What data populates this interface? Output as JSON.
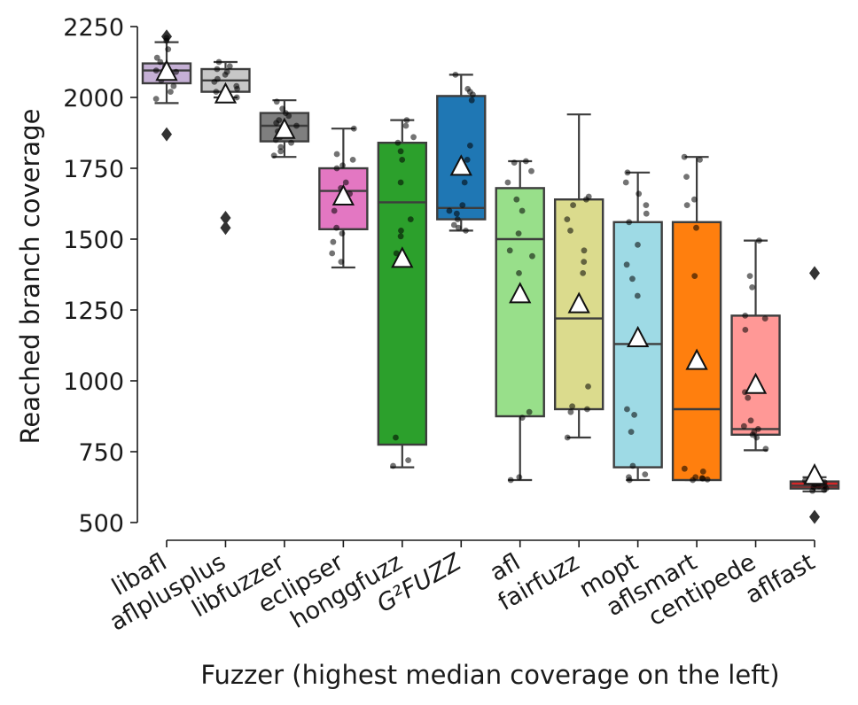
{
  "chart_data": {
    "type": "box",
    "title": "",
    "xlabel": "Fuzzer (highest median coverage on the left)",
    "ylabel": "Reached branch coverage",
    "ylim": [
      500,
      2250
    ],
    "yticks": [
      500,
      750,
      1000,
      1250,
      1500,
      1750,
      2000,
      2250
    ],
    "grid": false,
    "legend": "none",
    "boxes": [
      {
        "label": "libafl",
        "italic": false,
        "color": "#c5b0d5",
        "q1": 2050,
        "median": 2095,
        "q3": 2120,
        "whisker_low": 1980,
        "whisker_high": 2195,
        "mean": 2090,
        "outliers": [
          1870,
          2215
        ],
        "points": [
          2200,
          2170,
          2140,
          2125,
          2110,
          2100,
          2095,
          2090,
          2080,
          2070,
          2060,
          2040,
          2020,
          1995,
          2210
        ]
      },
      {
        "label": "aflplusplus",
        "italic": false,
        "color": "#c7c7c7",
        "q1": 2020,
        "median": 2060,
        "q3": 2100,
        "whisker_low": 2000,
        "whisker_high": 2125,
        "mean": 2010,
        "outliers": [
          1540,
          1575
        ],
        "points": [
          2125,
          2110,
          2100,
          2090,
          2080,
          2065,
          2055,
          2040,
          2030,
          2020,
          2010,
          2000
        ]
      },
      {
        "label": "libfuzzer",
        "italic": false,
        "color": "#7f7f7f",
        "q1": 1845,
        "median": 1900,
        "q3": 1945,
        "whisker_low": 1790,
        "whisker_high": 1990,
        "mean": 1885,
        "outliers": [],
        "points": [
          1985,
          1960,
          1945,
          1935,
          1920,
          1910,
          1900,
          1890,
          1880,
          1870,
          1860,
          1850,
          1840,
          1825,
          1810,
          1795
        ]
      },
      {
        "label": "eclipser",
        "italic": false,
        "color": "#e377c2",
        "q1": 1535,
        "median": 1670,
        "q3": 1750,
        "whisker_low": 1400,
        "whisker_high": 1890,
        "mean": 1650,
        "outliers": [],
        "points": [
          1890,
          1800,
          1780,
          1760,
          1750,
          1700,
          1680,
          1660,
          1640,
          1600,
          1540,
          1520,
          1490,
          1450,
          1420
        ]
      },
      {
        "label": "honggfuzz",
        "italic": false,
        "color": "#2ca02c",
        "q1": 775,
        "median": 1630,
        "q3": 1840,
        "whisker_low": 695,
        "whisker_high": 1920,
        "mean": 1430,
        "outliers": [],
        "points": [
          1920,
          1900,
          1860,
          1840,
          1810,
          1780,
          1700,
          1570,
          1530,
          1510,
          1450,
          800,
          720,
          700
        ]
      },
      {
        "label": "G²FUZZ",
        "italic": true,
        "color": "#1f77b4",
        "q1": 1570,
        "median": 1610,
        "q3": 2005,
        "whisker_low": 1530,
        "whisker_high": 2080,
        "mean": 1755,
        "outliers": [],
        "points": [
          2080,
          2030,
          2020,
          2010,
          1990,
          1830,
          1780,
          1700,
          1620,
          1600,
          1590,
          1570,
          1550,
          1540,
          1530
        ]
      },
      {
        "label": "afl",
        "italic": false,
        "color": "#98df8a",
        "q1": 875,
        "median": 1500,
        "q3": 1680,
        "whisker_low": 650,
        "whisker_high": 1775,
        "mean": 1305,
        "outliers": [],
        "points": [
          1775,
          1770,
          1740,
          1700,
          1640,
          1600,
          1520,
          1460,
          1440,
          1380,
          890,
          870,
          660,
          650
        ]
      },
      {
        "label": "fairfuzz",
        "italic": false,
        "color": "#dbdb8d",
        "q1": 900,
        "median": 1220,
        "q3": 1640,
        "whisker_low": 800,
        "whisker_high": 1940,
        "mean": 1270,
        "outliers": [],
        "points": [
          1640,
          1650,
          1620,
          1570,
          1530,
          1460,
          1420,
          1380,
          980,
          910,
          900,
          890,
          800
        ]
      },
      {
        "label": "mopt",
        "italic": false,
        "color": "#9edae5",
        "q1": 695,
        "median": 1130,
        "q3": 1560,
        "whisker_low": 650,
        "whisker_high": 1735,
        "mean": 1150,
        "outliers": [],
        "points": [
          1735,
          1700,
          1660,
          1620,
          1590,
          1560,
          1480,
          1410,
          1360,
          1300,
          900,
          880,
          820,
          700,
          670,
          660,
          650
        ]
      },
      {
        "label": "aflsmart",
        "italic": false,
        "color": "#ff7f0e",
        "q1": 650,
        "median": 900,
        "q3": 1560,
        "whisker_low": 650,
        "whisker_high": 1790,
        "mean": 1070,
        "outliers": [],
        "points": [
          1790,
          1780,
          1720,
          1640,
          1620,
          1540,
          1370,
          690,
          680,
          660,
          655,
          650,
          652,
          657
        ]
      },
      {
        "label": "centipede",
        "italic": false,
        "color": "#ff9896",
        "q1": 810,
        "median": 830,
        "q3": 1230,
        "whisker_low": 755,
        "whisker_high": 1495,
        "mean": 985,
        "outliers": [],
        "points": [
          1495,
          1370,
          1330,
          1230,
          1220,
          1180,
          960,
          940,
          860,
          840,
          830,
          820,
          810,
          800,
          760
        ]
      },
      {
        "label": "aflfast",
        "italic": false,
        "color": "#d62728",
        "q1": 620,
        "median": 630,
        "q3": 645,
        "whisker_low": 610,
        "whisker_high": 660,
        "mean": 665,
        "outliers": [
          1380,
          520
        ],
        "points": [
          660,
          655,
          648,
          642,
          638,
          635,
          630,
          628,
          625,
          620,
          615,
          612
        ]
      }
    ]
  }
}
